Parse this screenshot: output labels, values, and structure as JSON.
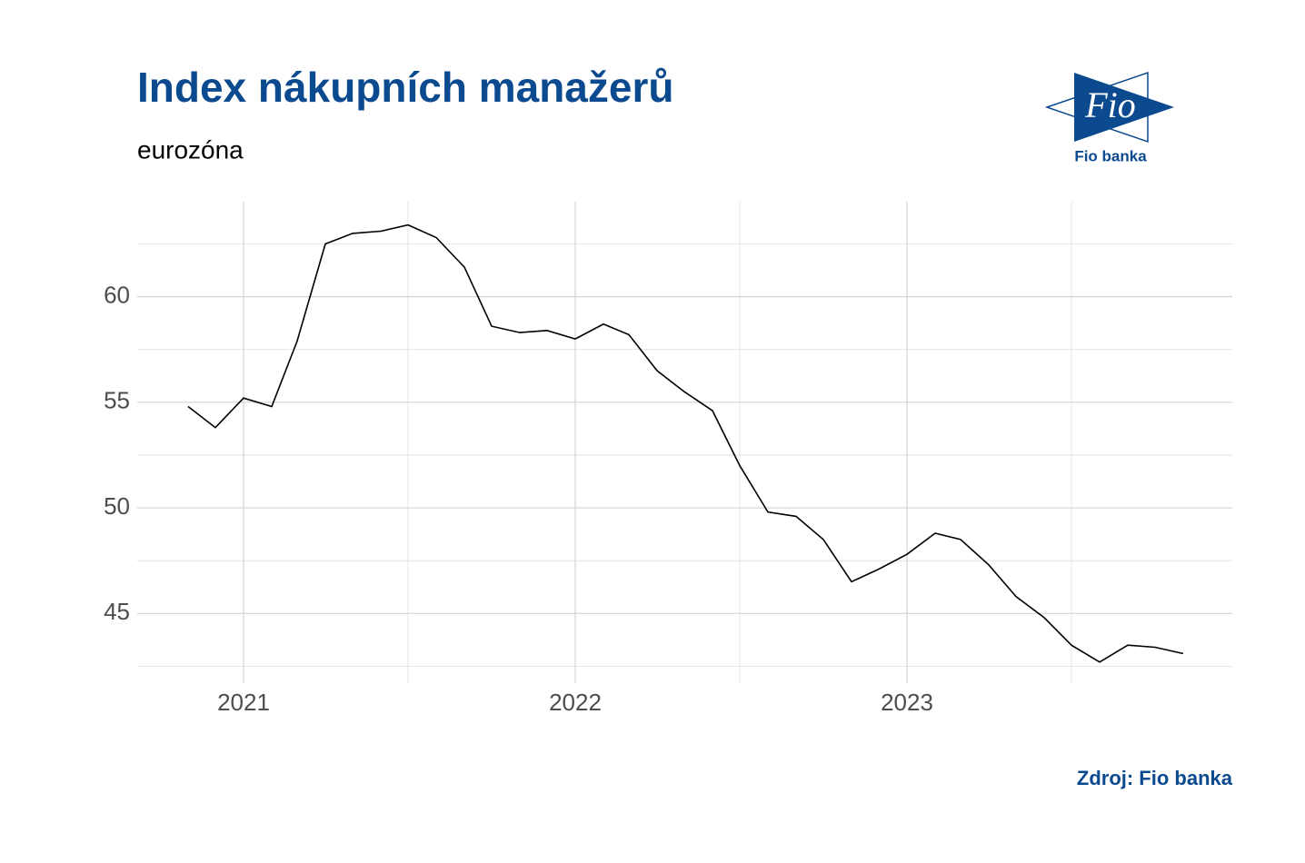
{
  "chart_data": {
    "type": "line",
    "title": "Index nákupních manažerů",
    "subtitle": "eurozóna",
    "source": "Zdroj: Fio banka",
    "logo": {
      "mark": "Fio",
      "name": "Fio banka"
    },
    "x": [
      "2020-11",
      "2020-12",
      "2021-01",
      "2021-02",
      "2021-03",
      "2021-04",
      "2021-05",
      "2021-06",
      "2021-07",
      "2021-08",
      "2021-09",
      "2021-10",
      "2021-11",
      "2021-12",
      "2022-01",
      "2022-02",
      "2022-03",
      "2022-04",
      "2022-05",
      "2022-06",
      "2022-07",
      "2022-08",
      "2022-09",
      "2022-10",
      "2022-11",
      "2022-12",
      "2023-01",
      "2023-02",
      "2023-03",
      "2023-04",
      "2023-05",
      "2023-06",
      "2023-07",
      "2023-08",
      "2023-09",
      "2023-10",
      "2023-11"
    ],
    "values": [
      54.8,
      53.8,
      55.2,
      54.8,
      57.9,
      62.5,
      63.0,
      63.1,
      63.4,
      62.8,
      61.4,
      58.6,
      58.3,
      58.4,
      58.0,
      58.7,
      58.2,
      56.5,
      55.5,
      54.6,
      52.0,
      49.8,
      49.6,
      48.5,
      46.5,
      47.1,
      47.8,
      48.8,
      48.5,
      47.3,
      45.8,
      44.8,
      43.5,
      42.7,
      43.5,
      43.4,
      43.1
    ],
    "color": "#000000",
    "xlim": [
      "2020-09-06",
      "2023-12-25"
    ],
    "xticks": [
      {
        "value": "2021-01",
        "label": "2021"
      },
      {
        "value": "2022-01",
        "label": "2022"
      },
      {
        "value": "2023-01",
        "label": "2023"
      }
    ],
    "xminorticks": [
      "2021-07",
      "2022-07",
      "2023-07"
    ],
    "ylim": [
      41.7,
      64.5
    ],
    "yticks": [
      45,
      50,
      55,
      60
    ],
    "yminorticks": [
      42.5,
      47.5,
      52.5,
      57.5,
      62.5
    ],
    "grid": true
  }
}
